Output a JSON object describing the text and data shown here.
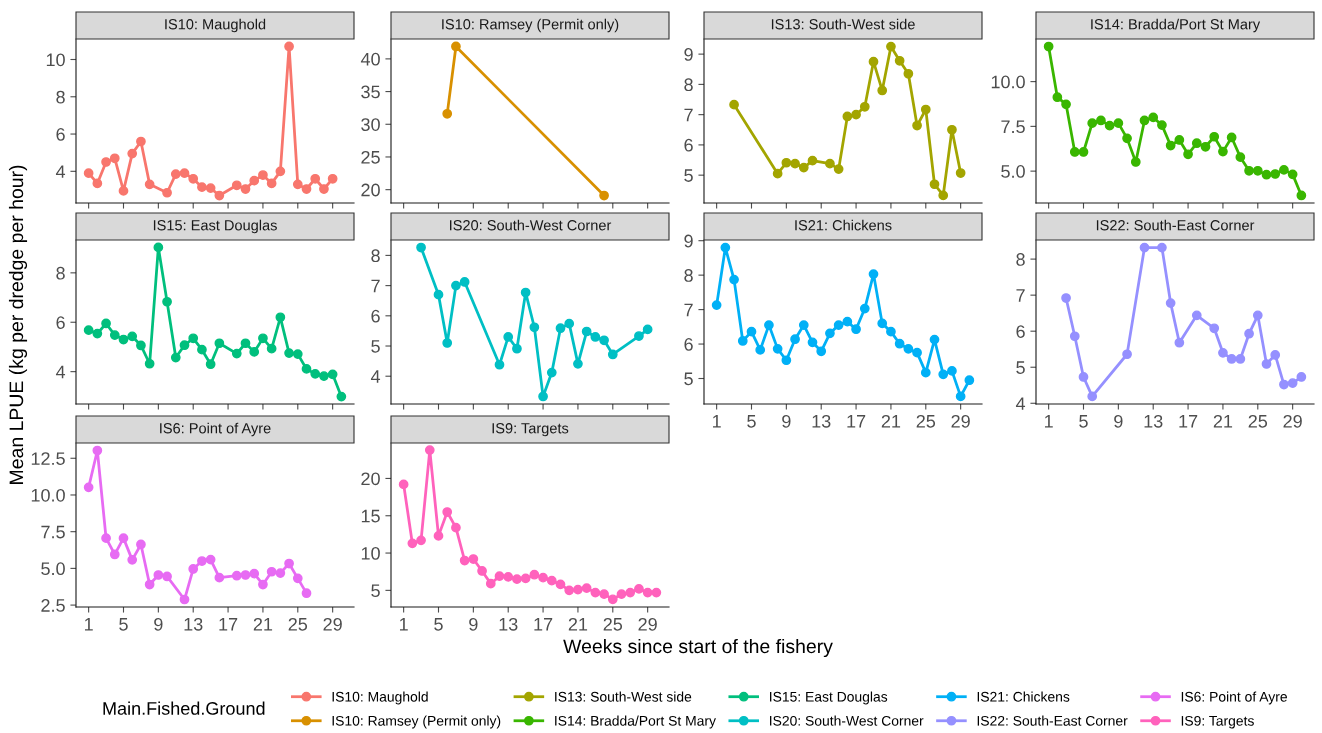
{
  "chart_data": [
    {
      "type": "line",
      "title": "IS10: Maughold",
      "ylabel": null,
      "xlim": [
        -0.45,
        31.45
      ],
      "xticks": [
        1,
        5,
        9,
        13,
        17,
        21,
        25,
        29
      ],
      "ylim": [
        2.3,
        11.1
      ],
      "yticks": [
        4,
        6,
        8,
        10
      ],
      "tick_labels": "y",
      "marker": "circle",
      "line_style": "solid",
      "grid": false,
      "legend": "bottom",
      "legend_title": "Main.Fished.Ground",
      "series": [
        {
          "name": "IS10: Maughold",
          "color": "#f8766d",
          "x": [
            1,
            2,
            3,
            4,
            5,
            6,
            7,
            8,
            10,
            11,
            12,
            13,
            14,
            15,
            16,
            18,
            19,
            20,
            21,
            22,
            23,
            24,
            25,
            26,
            27,
            28,
            29
          ],
          "values": [
            3.9,
            3.35,
            4.5,
            4.7,
            2.95,
            4.95,
            5.6,
            3.3,
            2.85,
            3.85,
            3.9,
            3.6,
            3.15,
            3.1,
            2.7,
            3.25,
            3.05,
            3.5,
            3.8,
            3.35,
            4.0,
            10.7,
            3.3,
            3.05,
            3.6,
            3.05,
            3.6
          ]
        }
      ]
    },
    {
      "type": "line",
      "title": "IS10: Ramsey (Permit only)",
      "xlim": [
        -0.45,
        31.45
      ],
      "xticks": [
        1,
        5,
        9,
        13,
        17,
        21,
        25,
        29
      ],
      "ylim": [
        17.96,
        43.04
      ],
      "yticks": [
        20,
        25,
        30,
        35,
        40
      ],
      "tick_labels": "y",
      "marker": "circle",
      "line_style": "solid",
      "grid": false,
      "legend": "bottom",
      "series": [
        {
          "name": "IS10: Ramsey (Permit only)",
          "color": "#d89000",
          "x": [
            6,
            7,
            24
          ],
          "values": [
            31.6,
            41.9,
            19.1
          ]
        }
      ]
    },
    {
      "type": "line",
      "title": "IS13: South-West side",
      "xlim": [
        -0.45,
        31.45
      ],
      "xticks": [
        1,
        5,
        9,
        13,
        17,
        21,
        25,
        29
      ],
      "ylim": [
        4.08,
        9.5
      ],
      "yticks": [
        5,
        6,
        7,
        8,
        9
      ],
      "tick_labels": "y",
      "marker": "circle",
      "line_style": "solid",
      "grid": false,
      "legend": "bottom",
      "series": [
        {
          "name": "IS13: South-West side",
          "color": "#a3a500",
          "x": [
            3,
            8,
            9,
            10,
            11,
            12,
            14,
            15,
            16,
            17,
            18,
            19,
            20,
            21,
            22,
            23,
            24,
            25,
            26,
            27,
            28,
            29
          ],
          "values": [
            7.33,
            5.05,
            5.41,
            5.38,
            5.25,
            5.48,
            5.38,
            5.2,
            6.94,
            7.0,
            7.26,
            8.75,
            7.8,
            9.25,
            8.78,
            8.35,
            6.64,
            7.17,
            4.7,
            4.33,
            6.5,
            5.07
          ]
        }
      ]
    },
    {
      "type": "line",
      "title": "IS14: Bradda/Port St Mary",
      "xlim": [
        -0.45,
        31.45
      ],
      "xticks": [
        1,
        5,
        9,
        13,
        17,
        21,
        25,
        29
      ],
      "ylim": [
        3.22,
        12.38
      ],
      "yticks": [
        {
          "value": 5,
          "label": "5.0"
        },
        {
          "value": 7.5,
          "label": "7.5"
        },
        {
          "value": 10,
          "label": "10.0"
        }
      ],
      "tick_labels": "y",
      "marker": "circle",
      "line_style": "solid",
      "grid": false,
      "legend": "bottom",
      "series": [
        {
          "name": "IS14: Bradda/Port St Mary",
          "color": "#39b600",
          "x": [
            1,
            2,
            3,
            4,
            5,
            6,
            7,
            8,
            9,
            10,
            11,
            12,
            13,
            14,
            15,
            16,
            17,
            18,
            19,
            20,
            21,
            22,
            23,
            24,
            25,
            26,
            27,
            28,
            29,
            30
          ],
          "values": [
            11.96,
            9.13,
            8.73,
            6.07,
            6.07,
            7.68,
            7.83,
            7.54,
            7.68,
            6.83,
            5.51,
            7.83,
            8.0,
            7.57,
            6.43,
            6.74,
            5.94,
            6.56,
            6.36,
            6.92,
            6.09,
            6.88,
            5.78,
            5.02,
            5.02,
            4.8,
            4.84,
            5.07,
            4.82,
            3.64
          ]
        }
      ]
    },
    {
      "type": "line",
      "title": "IS15: East Douglas",
      "ylabel": "Mean LPUE (kg per dredge per hour)",
      "xlim": [
        -0.45,
        31.45
      ],
      "xticks": [
        1,
        5,
        9,
        13,
        17,
        21,
        25,
        29
      ],
      "ylim": [
        2.69,
        9.33
      ],
      "yticks": [
        4,
        6,
        8
      ],
      "tick_labels": "y",
      "marker": "circle",
      "line_style": "solid",
      "grid": false,
      "legend": "bottom",
      "series": [
        {
          "name": "IS15: East Douglas",
          "color": "#00bf7d",
          "x": [
            1,
            2,
            3,
            4,
            5,
            6,
            7,
            8,
            9,
            10,
            11,
            12,
            13,
            14,
            15,
            16,
            18,
            19,
            20,
            21,
            22,
            23,
            24,
            25,
            26,
            27,
            28,
            29,
            30
          ],
          "values": [
            5.68,
            5.54,
            5.95,
            5.48,
            5.3,
            5.43,
            5.06,
            4.32,
            9.03,
            6.83,
            4.57,
            5.07,
            5.35,
            4.89,
            4.3,
            5.15,
            4.73,
            5.15,
            4.8,
            5.35,
            4.93,
            6.2,
            4.75,
            4.71,
            4.11,
            3.91,
            3.82,
            3.89,
            2.99
          ]
        }
      ]
    },
    {
      "type": "line",
      "title": "IS20: South-West Corner",
      "xlim": [
        -0.45,
        31.45
      ],
      "xticks": [
        1,
        5,
        9,
        13,
        17,
        21,
        25,
        29
      ],
      "ylim": [
        3.08,
        8.51
      ],
      "yticks": [
        4,
        5,
        6,
        7,
        8
      ],
      "tick_labels": "y",
      "marker": "circle",
      "line_style": "solid",
      "grid": false,
      "legend": "bottom",
      "series": [
        {
          "name": "IS20: South-West Corner",
          "color": "#00bfc4",
          "x": [
            3,
            5,
            6,
            7,
            8,
            12,
            13,
            14,
            15,
            16,
            17,
            18,
            19,
            20,
            21,
            22,
            23,
            24,
            25,
            28,
            29
          ],
          "values": [
            8.26,
            6.7,
            5.1,
            7.0,
            7.12,
            4.38,
            5.3,
            4.91,
            6.77,
            5.62,
            3.33,
            4.12,
            5.59,
            5.74,
            4.41,
            5.48,
            5.3,
            5.19,
            4.72,
            5.33,
            5.55
          ]
        }
      ]
    },
    {
      "type": "line",
      "title": "IS21: Chickens",
      "xlim": [
        -0.45,
        31.45
      ],
      "xticks": [
        1,
        5,
        9,
        13,
        17,
        21,
        25,
        29
      ],
      "ylim": [
        4.26,
        9.02
      ],
      "yticks": [
        5,
        6,
        7,
        8,
        9
      ],
      "marker": "circle",
      "line_style": "solid",
      "grid": false,
      "legend": "bottom",
      "series": [
        {
          "name": "IS21: Chickens",
          "color": "#00b0f6",
          "x": [
            1,
            2,
            3,
            4,
            5,
            6,
            7,
            8,
            9,
            10,
            11,
            12,
            13,
            14,
            15,
            16,
            17,
            18,
            19,
            20,
            21,
            22,
            23,
            24,
            25,
            26,
            27,
            28,
            29,
            30
          ],
          "values": [
            7.13,
            8.8,
            7.87,
            6.09,
            6.36,
            5.83,
            6.55,
            5.86,
            5.53,
            6.14,
            6.55,
            6.05,
            5.79,
            6.31,
            6.55,
            6.65,
            6.43,
            7.03,
            8.03,
            6.6,
            6.36,
            6.01,
            5.86,
            5.75,
            5.17,
            6.13,
            5.12,
            5.22,
            4.48,
            4.95
          ]
        }
      ]
    },
    {
      "type": "line",
      "title": "IS22: South-East Corner",
      "xlim": [
        -0.45,
        31.45
      ],
      "xticks": [
        1,
        5,
        9,
        13,
        17,
        21,
        25,
        29
      ],
      "ylim": [
        3.98,
        8.53
      ],
      "yticks": [
        4,
        5,
        6,
        7,
        8
      ],
      "marker": "circle",
      "line_style": "solid",
      "grid": false,
      "legend": "bottom",
      "series": [
        {
          "name": "IS22: South-East Corner",
          "color": "#9590ff",
          "x": [
            3,
            4,
            5,
            6,
            10,
            12,
            14,
            15,
            16,
            18,
            20,
            21,
            22,
            23,
            24,
            25,
            26,
            27,
            28,
            29,
            30
          ],
          "values": [
            6.92,
            5.86,
            4.73,
            4.19,
            5.36,
            8.32,
            8.32,
            6.78,
            5.68,
            6.44,
            6.08,
            5.4,
            5.23,
            5.23,
            5.93,
            6.44,
            5.09,
            5.34,
            4.52,
            4.56,
            4.73
          ]
        }
      ]
    },
    {
      "type": "line",
      "title": "IS6: Point of Ayre",
      "xlim": [
        -0.45,
        31.45
      ],
      "xticks": [
        1,
        5,
        9,
        13,
        17,
        21,
        25,
        29
      ],
      "ylim": [
        2.37,
        13.54
      ],
      "yticks": [
        {
          "value": 2.5,
          "label": "2.5"
        },
        {
          "value": 5,
          "label": "5.0"
        },
        {
          "value": 7.5,
          "label": "7.5"
        },
        {
          "value": 10,
          "label": "10.0"
        },
        {
          "value": 12.5,
          "label": "12.5"
        }
      ],
      "marker": "circle",
      "line_style": "solid",
      "grid": false,
      "legend": "bottom",
      "series": [
        {
          "name": "IS6: Point of Ayre",
          "color": "#e76bf3",
          "x": [
            1,
            2,
            3,
            4,
            5,
            6,
            7,
            8,
            9,
            10,
            12,
            13,
            14,
            15,
            16,
            18,
            19,
            20,
            21,
            22,
            23,
            24,
            25,
            26
          ],
          "values": [
            10.52,
            13.03,
            7.06,
            5.95,
            7.06,
            5.58,
            6.63,
            3.9,
            4.55,
            4.45,
            2.88,
            4.96,
            5.5,
            5.6,
            4.37,
            4.5,
            4.55,
            4.64,
            3.9,
            4.77,
            4.68,
            5.33,
            4.32,
            3.31
          ]
        }
      ]
    },
    {
      "type": "line",
      "title": "IS9: Targets",
      "xlabel": "Weeks since start of the fishery",
      "xlim": [
        -0.45,
        31.45
      ],
      "xticks": [
        1,
        5,
        9,
        13,
        17,
        21,
        25,
        29
      ],
      "ylim": [
        2.77,
        24.75
      ],
      "yticks": [
        5,
        10,
        15,
        20
      ],
      "marker": "circle",
      "line_style": "solid",
      "grid": false,
      "legend": "bottom",
      "series": [
        {
          "name": "IS9: Targets",
          "color": "#ff62bc",
          "x": [
            1,
            2,
            3,
            4,
            5,
            6,
            7,
            8,
            9,
            10,
            11,
            12,
            13,
            14,
            15,
            16,
            17,
            18,
            19,
            20,
            21,
            22,
            23,
            24,
            25,
            26,
            27,
            28,
            29,
            30
          ],
          "values": [
            19.2,
            11.3,
            11.7,
            23.8,
            12.3,
            15.5,
            13.4,
            9.0,
            9.2,
            7.6,
            5.9,
            6.9,
            6.8,
            6.5,
            6.6,
            7.1,
            6.7,
            6.3,
            5.8,
            5.0,
            5.1,
            5.3,
            4.7,
            4.5,
            3.8,
            4.5,
            4.7,
            5.2,
            4.7,
            4.7
          ]
        }
      ]
    }
  ]
}
